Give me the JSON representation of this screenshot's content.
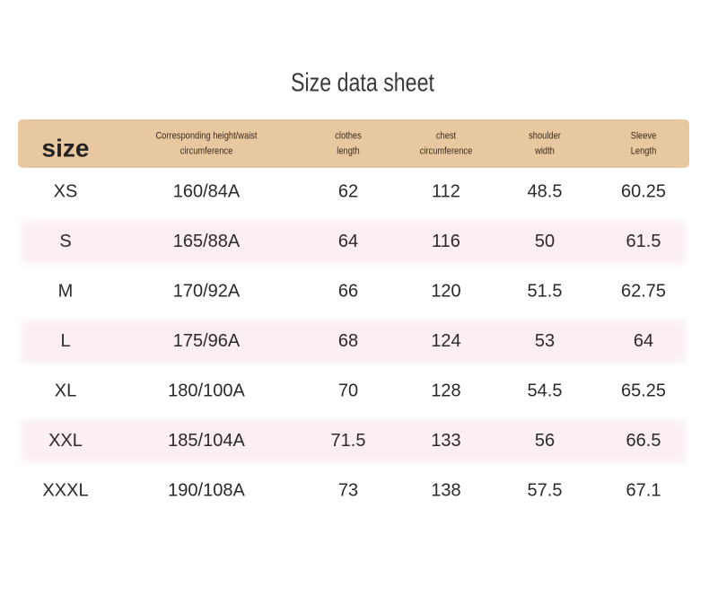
{
  "title": "Size data sheet",
  "table": {
    "header": [
      [
        "size"
      ],
      [
        "Corresponding height/waist",
        "circumference"
      ],
      [
        "clothes",
        "length"
      ],
      [
        "chest",
        "circumference"
      ],
      [
        "shoulder",
        "width"
      ],
      [
        "Sleeve",
        "Length"
      ]
    ],
    "rows": [
      [
        "XS",
        "160/84A",
        "62",
        "112",
        "48.5",
        "60.25"
      ],
      [
        "S",
        "165/88A",
        "64",
        "116",
        "50",
        "61.5"
      ],
      [
        "M",
        "170/92A",
        "66",
        "120",
        "51.5",
        "62.75"
      ],
      [
        "L",
        "175/96A",
        "68",
        "124",
        "53",
        "64"
      ],
      [
        "XL",
        "180/100A",
        "70",
        "128",
        "54.5",
        "65.25"
      ],
      [
        "XXL",
        "185/104A",
        "71.5",
        "133",
        "56",
        "66.5"
      ],
      [
        "XXXL",
        "190/108A",
        "73",
        "138",
        "57.5",
        "67.1"
      ]
    ]
  }
}
